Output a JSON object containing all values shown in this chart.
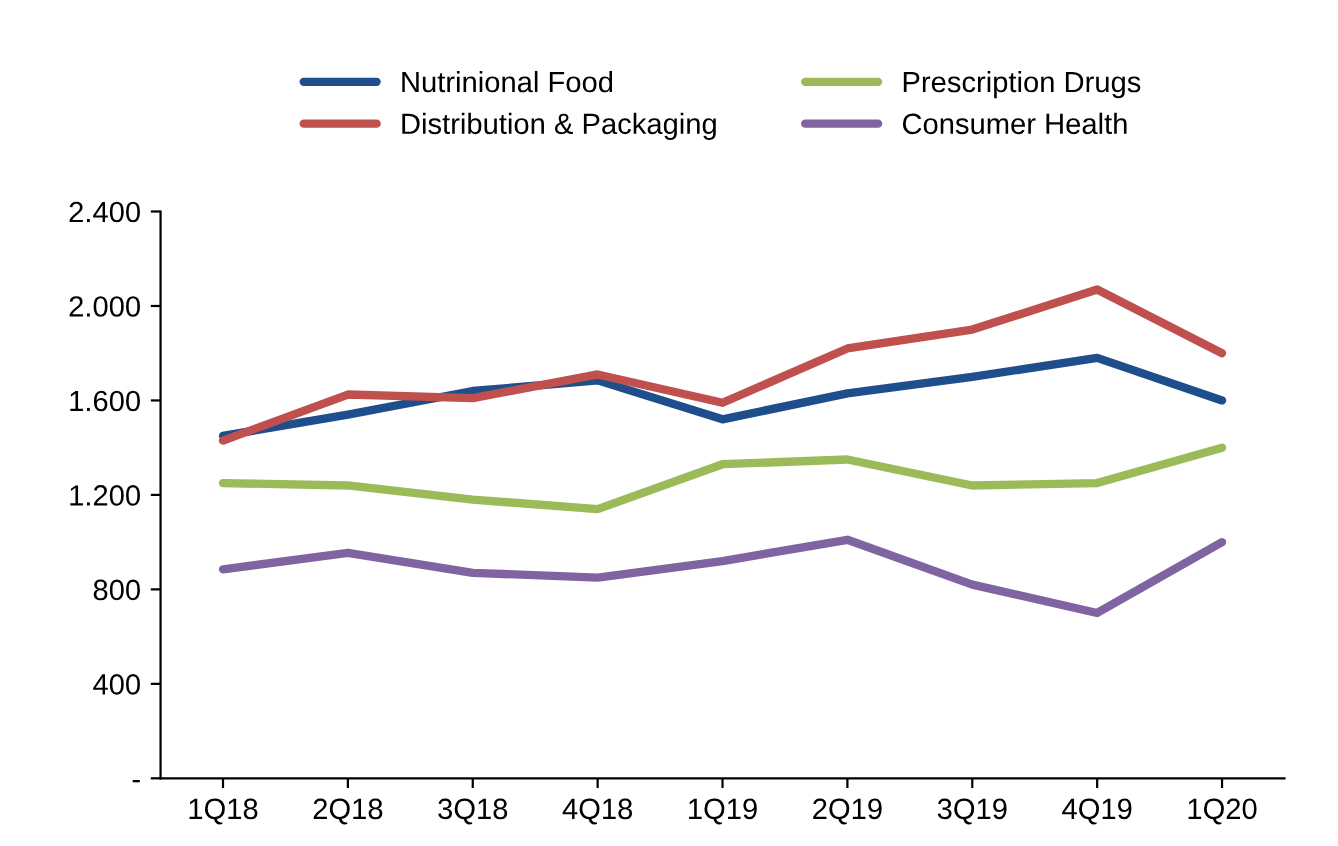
{
  "chart_data": {
    "type": "line",
    "categories": [
      "1Q18",
      "2Q18",
      "3Q18",
      "4Q18",
      "1Q19",
      "2Q19",
      "3Q19",
      "4Q19",
      "1Q20"
    ],
    "series": [
      {
        "name": "Nutrinional Food",
        "color": "#1f4e8c",
        "values": [
          1450,
          1540,
          1640,
          1685,
          1520,
          1630,
          1700,
          1780,
          1600
        ]
      },
      {
        "name": "Distribution & Packaging",
        "color": "#c0504d",
        "values": [
          1430,
          1625,
          1610,
          1710,
          1590,
          1820,
          1900,
          2070,
          1800
        ]
      },
      {
        "name": "Prescription Drugs",
        "color": "#9bbb59",
        "values": [
          1250,
          1240,
          1180,
          1140,
          1330,
          1350,
          1240,
          1250,
          1400
        ]
      },
      {
        "name": "Consumer Health",
        "color": "#8064a2",
        "values": [
          885,
          955,
          870,
          850,
          920,
          1010,
          820,
          700,
          1000
        ]
      }
    ],
    "ylim": [
      0,
      2400
    ],
    "yticks": [
      {
        "value": 0,
        "label": "-"
      },
      400,
      800,
      {
        "value": 1200,
        "label": "1.200"
      },
      {
        "value": 1600,
        "label": "1.600"
      },
      {
        "value": 2000,
        "label": "2.000"
      },
      {
        "value": 2400,
        "label": "2.400"
      }
    ],
    "grid": false,
    "legend": "top",
    "marker": "none",
    "line_style": "solid"
  }
}
